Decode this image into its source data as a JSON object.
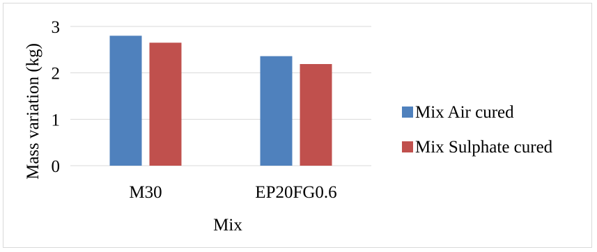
{
  "chart_data": {
    "type": "bar",
    "title": "",
    "xlabel": "Mix",
    "ylabel": "Mass variation (kg)",
    "categories": [
      "M30",
      "EP20FG0.6"
    ],
    "series": [
      {
        "name": "Mix Air cured",
        "values": [
          2.8,
          2.36
        ],
        "color": "#4f81bd"
      },
      {
        "name": "Mix Sulphate cured",
        "values": [
          2.65,
          2.19
        ],
        "color": "#c0504d"
      }
    ],
    "ylim": [
      0,
      3
    ],
    "yticks": [
      "0",
      "1",
      "2",
      "3"
    ],
    "grid": true,
    "legend_position": "right"
  }
}
